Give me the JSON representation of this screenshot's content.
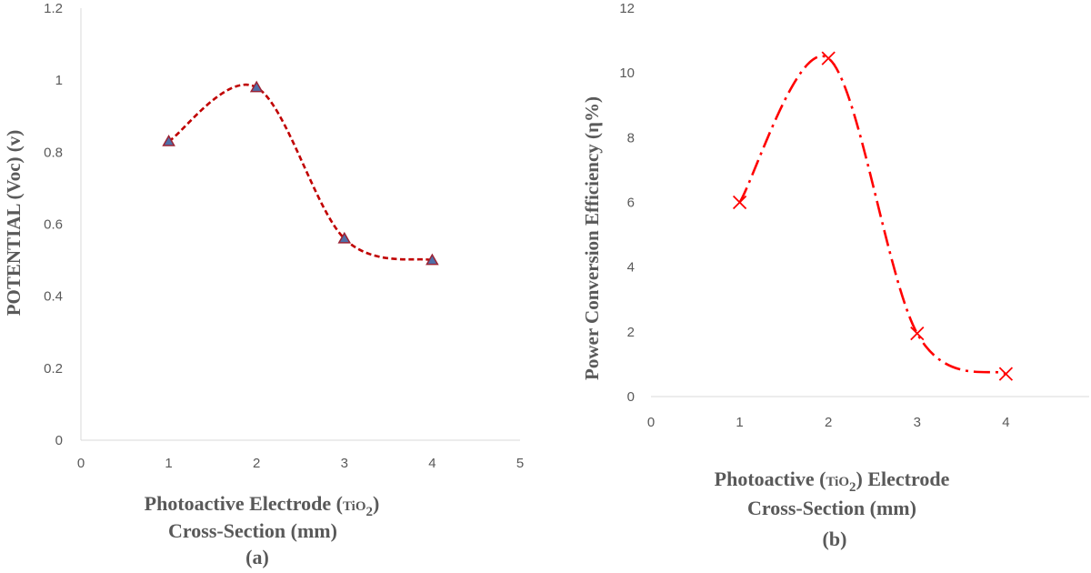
{
  "chart_data": [
    {
      "type": "line",
      "panel_label": "(a)",
      "xlabel_line1": "Photoactive Electrode (",
      "xlabel_chem_base": "TiO",
      "xlabel_chem_sub": "2",
      "xlabel_line1_end": ")",
      "xlabel_line2": "Cross-Section (mm)",
      "ylabel": "POTENTIAL (Voc) (v)",
      "xlim": [
        0,
        5
      ],
      "ylim": [
        0,
        1.2
      ],
      "x_ticks": [
        "0",
        "1",
        "2",
        "3",
        "4",
        "5"
      ],
      "y_ticks": [
        "0",
        "0.2",
        "0.4",
        "0.6",
        "0.8",
        "1",
        "1.2"
      ],
      "series": [
        {
          "x": [
            1,
            2,
            3,
            4
          ],
          "y": [
            0.83,
            0.98,
            0.56,
            0.5
          ],
          "marker": "triangle",
          "line_style": "dashed",
          "smooth": true
        }
      ],
      "colors": {
        "line": "#c00000",
        "marker_fill": "#4f6fa8",
        "marker_edge": "#9b2335"
      },
      "grid": false
    },
    {
      "type": "line",
      "panel_label": "(b)",
      "xlabel_line1_start": "Photoactive (",
      "xlabel_chem_base": "TiO",
      "xlabel_chem_sub": "2",
      "xlabel_line1": ") Electrode",
      "xlabel_line2": "Cross-Section (mm)",
      "ylabel": "Power Conversion Efficiency (η%)",
      "xlim": [
        0,
        5
      ],
      "ylim": [
        0,
        12
      ],
      "x_ticks": [
        "0",
        "1",
        "2",
        "3",
        "4"
      ],
      "y_ticks": [
        "0",
        "2",
        "4",
        "6",
        "8",
        "10",
        "12"
      ],
      "series": [
        {
          "x": [
            1,
            2,
            3,
            4
          ],
          "y": [
            6.0,
            10.45,
            1.95,
            0.7
          ],
          "marker": "x",
          "line_style": "dash-dot",
          "smooth": true
        }
      ],
      "colors": {
        "line": "#ff0000",
        "marker": "#ff0000"
      },
      "grid": false
    }
  ]
}
